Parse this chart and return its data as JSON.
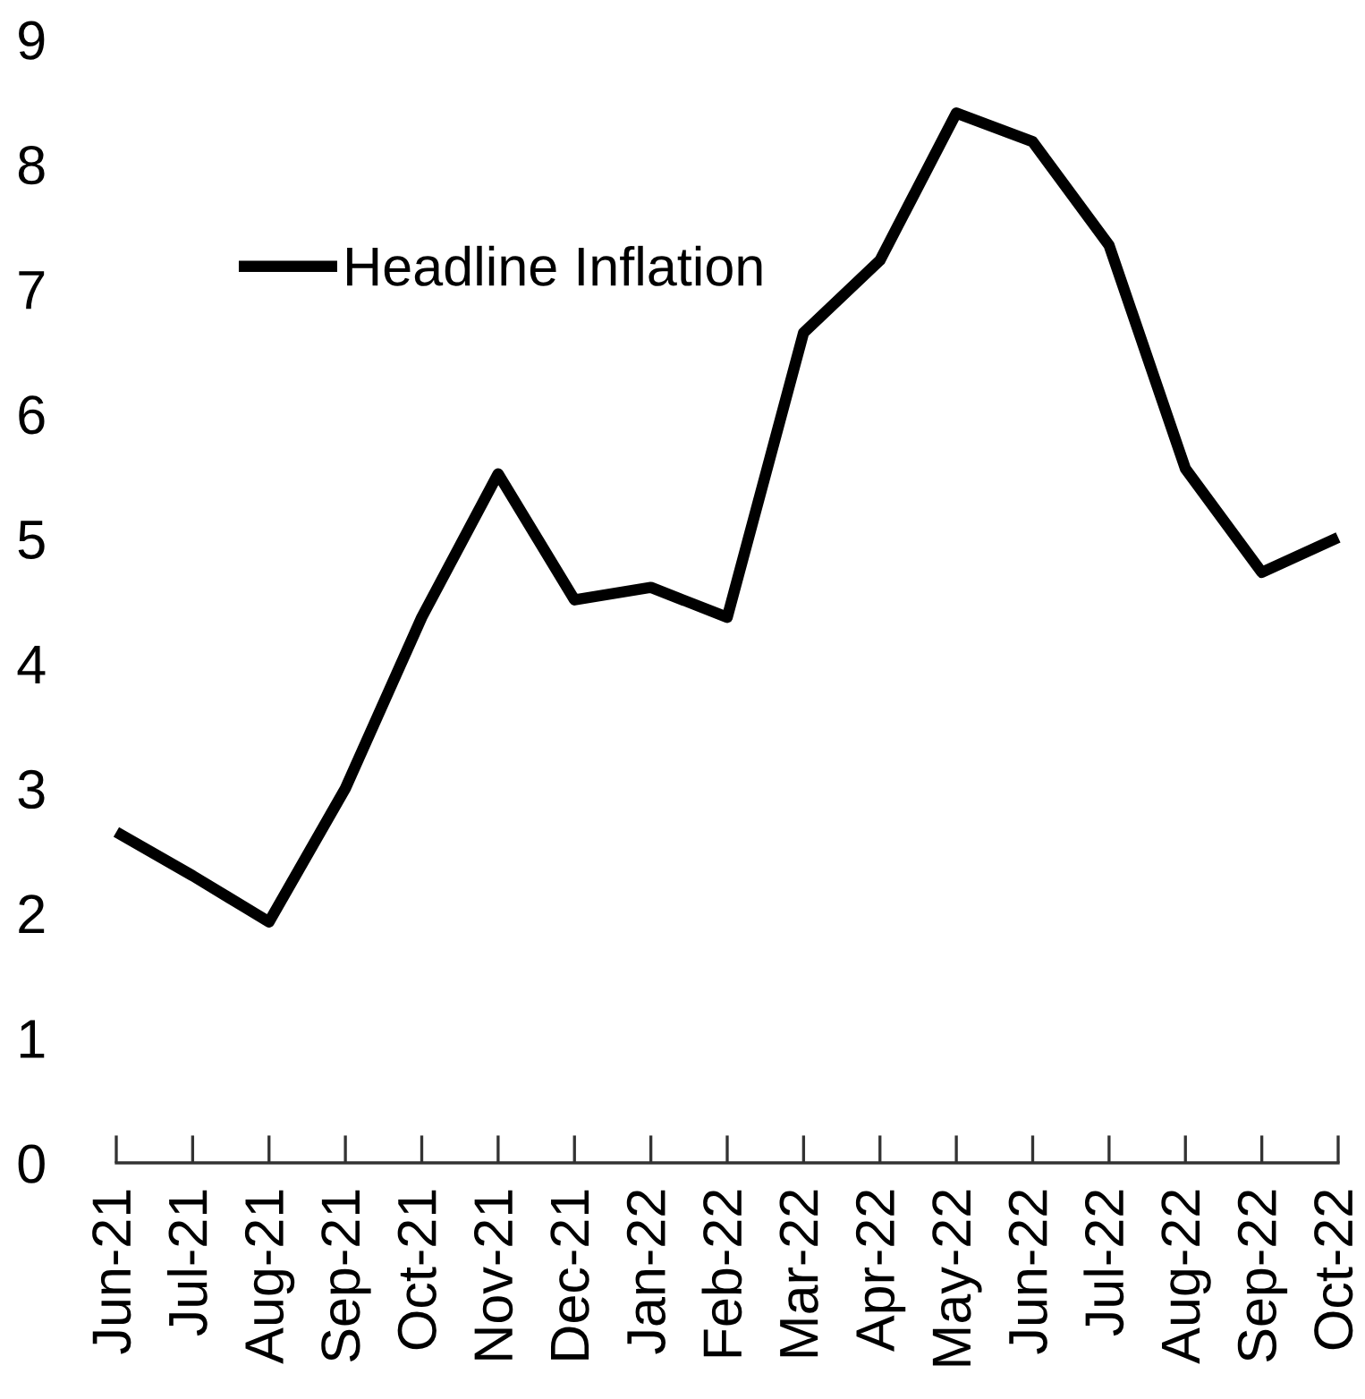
{
  "chart_data": {
    "type": "line",
    "categories": [
      "Jun-21",
      "Jul-21",
      "Aug-21",
      "Sep-21",
      "Oct-21",
      "Nov-21",
      "Dec-21",
      "Jan-22",
      "Feb-22",
      "Mar-22",
      "Apr-22",
      "May-22",
      "Jun-22",
      "Jul-22",
      "Aug-22",
      "Sep-22",
      "Oct-22"
    ],
    "series": [
      {
        "name": "Headline Inflation",
        "color": "#000000",
        "values": [
          2.65,
          2.3,
          1.93,
          3.0,
          4.37,
          5.52,
          4.51,
          4.61,
          4.37,
          6.65,
          7.23,
          8.41,
          8.18,
          7.35,
          5.56,
          4.73,
          5.01
        ]
      }
    ],
    "ylim": [
      0,
      9
    ],
    "yticks": [
      0,
      1,
      2,
      3,
      4,
      5,
      6,
      7,
      8,
      9
    ],
    "grid": false,
    "legend": "top left",
    "marker": "none",
    "line_style": "solid"
  }
}
